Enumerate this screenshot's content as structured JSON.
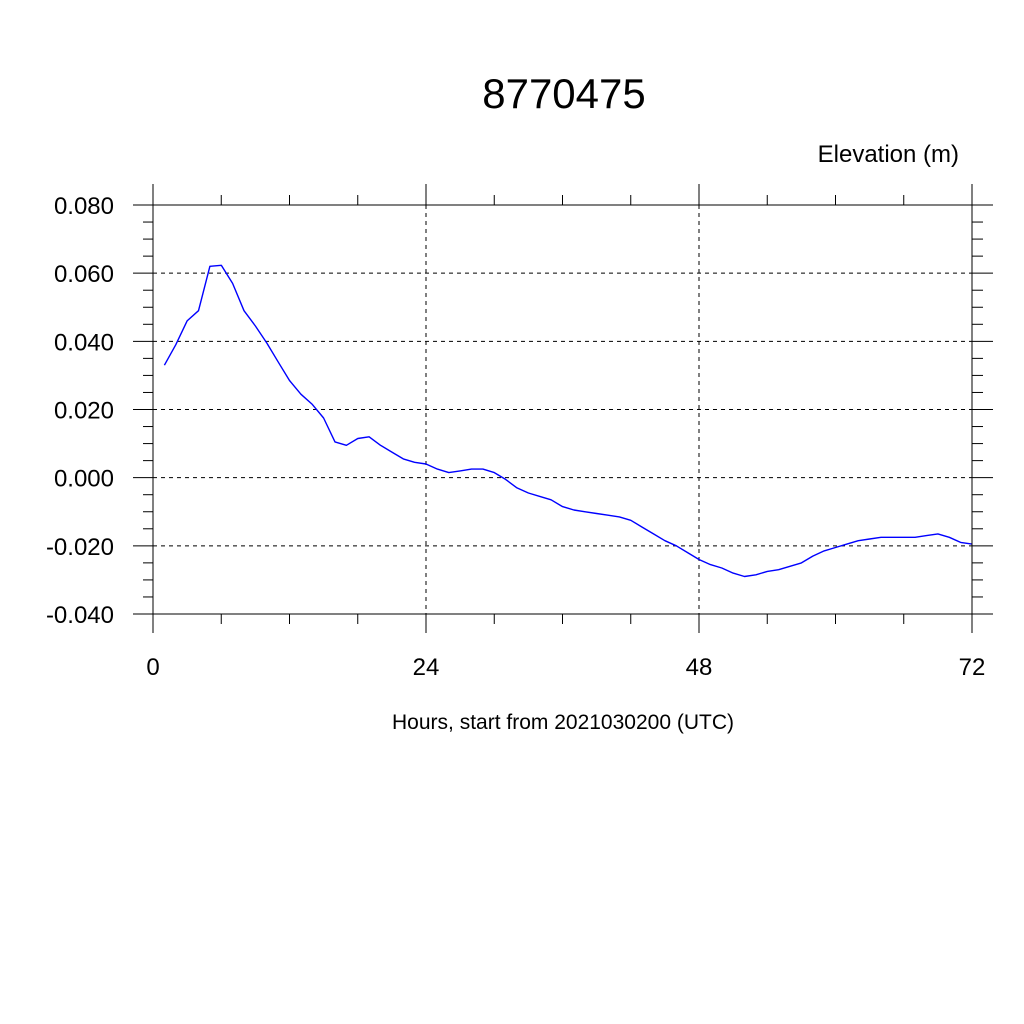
{
  "chart_data": {
    "type": "line",
    "title": "8770475",
    "ylabel": "Elevation (m)",
    "xlabel": "Hours, start from 2021030200 (UTC)",
    "xlim": [
      0,
      72
    ],
    "ylim": [
      -0.04,
      0.08
    ],
    "x_ticks": [
      0,
      24,
      48,
      72
    ],
    "x_tick_labels": [
      "0",
      "24",
      "48",
      "72"
    ],
    "y_ticks": [
      -0.04,
      -0.02,
      0.0,
      0.02,
      0.04,
      0.06,
      0.08
    ],
    "y_tick_labels": [
      "-0.040",
      "-0.020",
      "0.000",
      "0.020",
      "0.040",
      "0.060",
      "0.080"
    ],
    "grid": true,
    "series": [
      {
        "color": "#0000ff",
        "x": [
          1,
          2,
          3,
          4,
          5,
          6,
          7,
          8,
          9,
          10,
          11,
          12,
          13,
          14,
          15,
          16,
          17,
          18,
          19,
          20,
          21,
          22,
          23,
          24,
          25,
          26,
          27,
          28,
          29,
          30,
          31,
          32,
          33,
          34,
          35,
          36,
          37,
          38,
          39,
          40,
          41,
          42,
          43,
          44,
          45,
          46,
          47,
          48,
          49,
          50,
          51,
          52,
          53,
          54,
          55,
          56,
          57,
          58,
          59,
          60,
          61,
          62,
          63,
          64,
          65,
          66,
          67,
          68,
          69,
          70,
          71,
          72
        ],
        "values": [
          0.033,
          0.039,
          0.046,
          0.049,
          0.062,
          0.0623,
          0.057,
          0.049,
          0.0445,
          0.0395,
          0.034,
          0.0285,
          0.0245,
          0.0215,
          0.0175,
          0.0105,
          0.0095,
          0.0115,
          0.012,
          0.0095,
          0.0075,
          0.0055,
          0.0045,
          0.004,
          0.0025,
          0.0015,
          0.002,
          0.0025,
          0.0025,
          0.0015,
          -0.0005,
          -0.003,
          -0.0045,
          -0.0055,
          -0.0065,
          -0.0085,
          -0.0095,
          -0.01,
          -0.0105,
          -0.011,
          -0.0115,
          -0.0125,
          -0.0145,
          -0.0165,
          -0.0185,
          -0.02,
          -0.022,
          -0.024,
          -0.0255,
          -0.0265,
          -0.028,
          -0.029,
          -0.0285,
          -0.0275,
          -0.027,
          -0.026,
          -0.025,
          -0.023,
          -0.0215,
          -0.0205,
          -0.0195,
          -0.0185,
          -0.018,
          -0.0175,
          -0.0175,
          -0.0175,
          -0.0175,
          -0.017,
          -0.0165,
          -0.0175,
          -0.019,
          -0.0195
        ]
      }
    ]
  }
}
